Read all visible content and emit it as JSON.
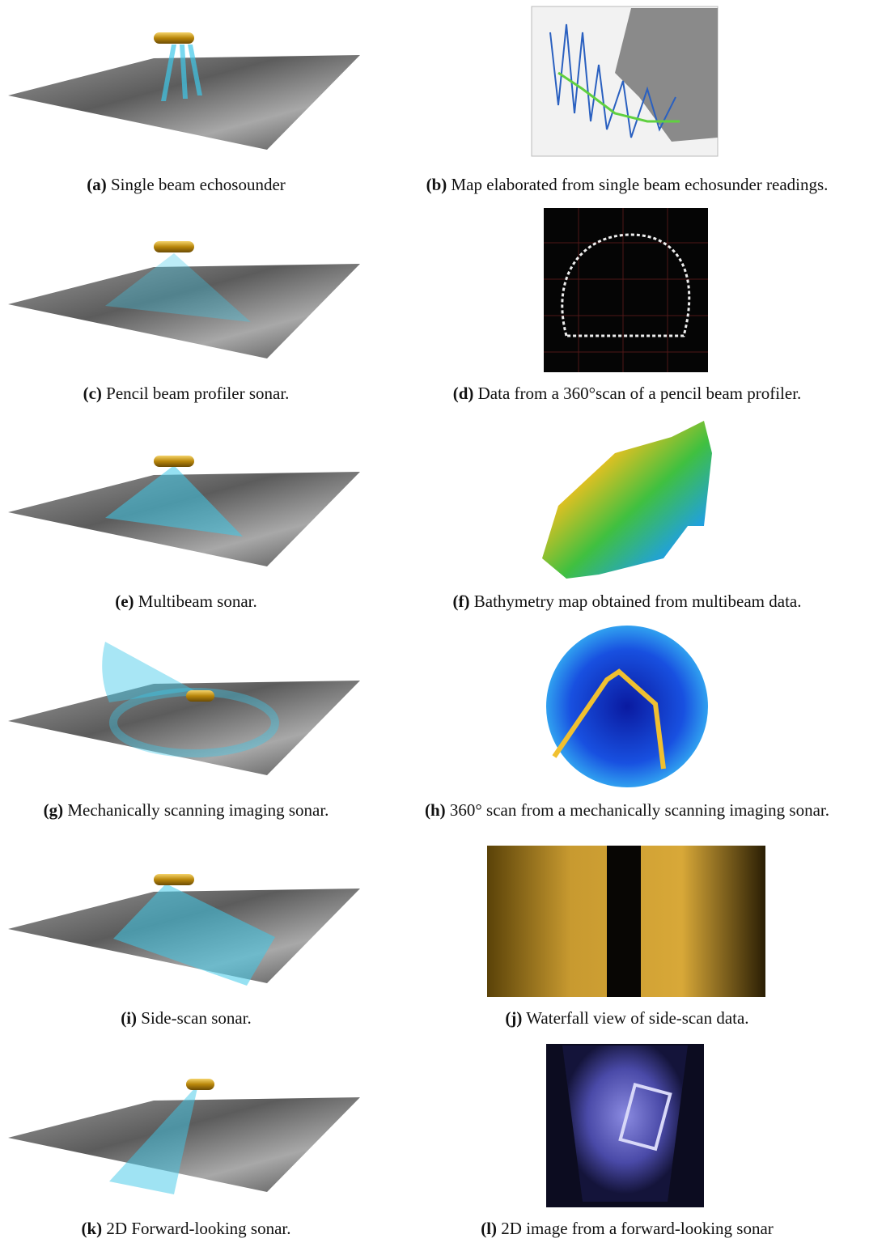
{
  "panels": [
    {
      "label": "(a)",
      "text": "Single beam echosounder"
    },
    {
      "label": "(b)",
      "text": "Map elaborated from single beam echosunder readings."
    },
    {
      "label": "(c)",
      "text": "Pencil beam profiler sonar."
    },
    {
      "label": "(d)",
      "text": "Data from a 360°scan of a pencil beam profiler."
    },
    {
      "label": "(e)",
      "text": "Multibeam sonar."
    },
    {
      "label": "(f)",
      "text": "Bathymetry map obtained from multibeam data."
    },
    {
      "label": "(g)",
      "text": "Mechanically scanning imaging sonar."
    },
    {
      "label": "(h)",
      "text": "360° scan from a mechanically scanning imaging sonar."
    },
    {
      "label": "(i)",
      "text": "Side-scan sonar."
    },
    {
      "label": "(j)",
      "text": "Waterfall view of side-scan data."
    },
    {
      "label": "(k)",
      "text": "2D Forward-looking sonar."
    },
    {
      "label": "(l)",
      "text": "2D image from a forward-looking sonar"
    }
  ]
}
